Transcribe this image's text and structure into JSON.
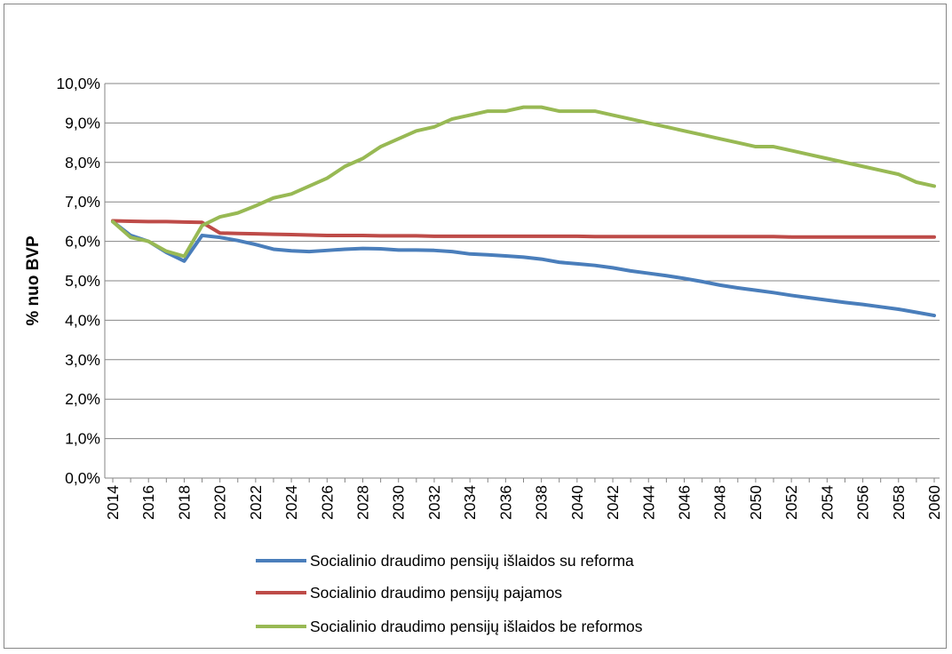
{
  "chart_data": {
    "type": "line",
    "title": "",
    "xlabel": "",
    "ylabel": "% nuo BVP",
    "ylim": [
      0,
      10
    ],
    "y_ticks": [
      "0,0%",
      "1,0%",
      "2,0%",
      "3,0%",
      "4,0%",
      "5,0%",
      "6,0%",
      "7,0%",
      "8,0%",
      "9,0%",
      "10,0%"
    ],
    "x_ticks": [
      "2014",
      "2016",
      "2018",
      "2020",
      "2022",
      "2024",
      "2026",
      "2028",
      "2030",
      "2032",
      "2034",
      "2036",
      "2038",
      "2040",
      "2042",
      "2044",
      "2046",
      "2048",
      "2050",
      "2052",
      "2054",
      "2056",
      "2058",
      "2060"
    ],
    "grid": "horizontal",
    "legend_position": "bottom",
    "x": [
      2014,
      2015,
      2016,
      2017,
      2018,
      2019,
      2020,
      2021,
      2022,
      2023,
      2024,
      2025,
      2026,
      2027,
      2028,
      2029,
      2030,
      2031,
      2032,
      2033,
      2034,
      2035,
      2036,
      2037,
      2038,
      2039,
      2040,
      2041,
      2042,
      2043,
      2044,
      2045,
      2046,
      2047,
      2048,
      2049,
      2050,
      2051,
      2052,
      2053,
      2054,
      2055,
      2056,
      2057,
      2058,
      2059,
      2060
    ],
    "series": [
      {
        "name": "Socialinio draudimo pensijų išlaidos su reforma",
        "color": "#4a7ebb",
        "values": [
          6.5,
          6.15,
          6.0,
          5.72,
          5.5,
          6.15,
          6.1,
          6.02,
          5.92,
          5.8,
          5.76,
          5.74,
          5.77,
          5.8,
          5.82,
          5.81,
          5.78,
          5.78,
          5.77,
          5.74,
          5.68,
          5.66,
          5.63,
          5.6,
          5.55,
          5.47,
          5.43,
          5.39,
          5.33,
          5.25,
          5.19,
          5.13,
          5.06,
          4.98,
          4.89,
          4.82,
          4.76,
          4.7,
          4.63,
          4.57,
          4.51,
          4.45,
          4.4,
          4.34,
          4.28,
          4.2,
          4.12
        ]
      },
      {
        "name": "Socialinio draudimo pensijų pajamos",
        "color": "#be4b48",
        "values": [
          6.52,
          6.51,
          6.5,
          6.5,
          6.49,
          6.48,
          6.21,
          6.2,
          6.19,
          6.18,
          6.17,
          6.16,
          6.15,
          6.15,
          6.15,
          6.14,
          6.14,
          6.14,
          6.13,
          6.13,
          6.13,
          6.13,
          6.13,
          6.13,
          6.13,
          6.13,
          6.13,
          6.12,
          6.12,
          6.12,
          6.12,
          6.12,
          6.12,
          6.12,
          6.12,
          6.12,
          6.12,
          6.12,
          6.11,
          6.11,
          6.11,
          6.11,
          6.11,
          6.11,
          6.11,
          6.11,
          6.11
        ]
      },
      {
        "name": "Socialinio draudimo pensijų išlaidos be reformos",
        "color": "#98b954",
        "values": [
          6.5,
          6.1,
          6.0,
          5.75,
          5.62,
          6.4,
          6.62,
          6.72,
          6.9,
          7.1,
          7.2,
          7.4,
          7.6,
          7.9,
          8.1,
          8.4,
          8.6,
          8.8,
          8.9,
          9.1,
          9.2,
          9.3,
          9.3,
          9.4,
          9.4,
          9.3,
          9.3,
          9.3,
          9.2,
          9.1,
          9.0,
          8.9,
          8.8,
          8.7,
          8.6,
          8.5,
          8.4,
          8.4,
          8.3,
          8.2,
          8.1,
          8.0,
          7.9,
          7.8,
          7.7,
          7.5,
          7.4
        ]
      }
    ]
  }
}
